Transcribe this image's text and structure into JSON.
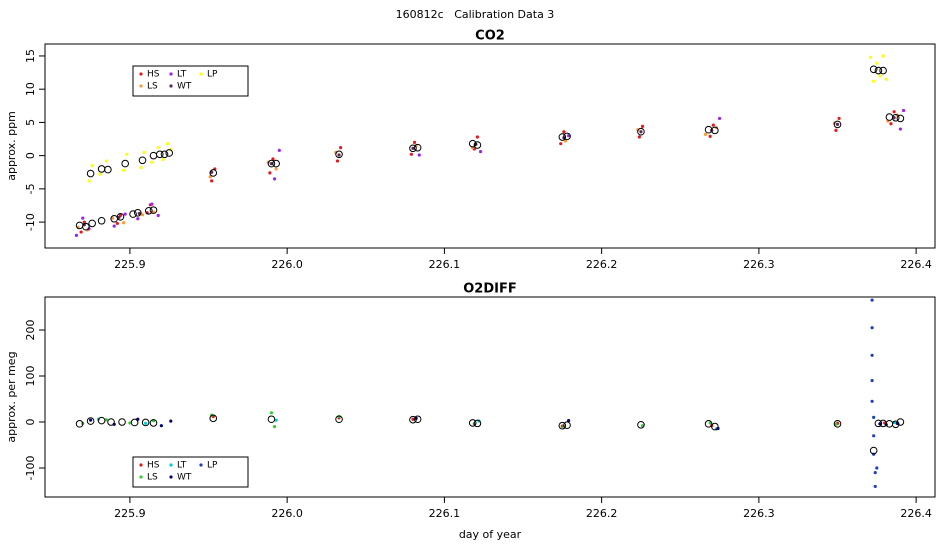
{
  "title": "160812c   Calibration Data 3",
  "chart_data": [
    {
      "type": "scatter",
      "title": "CO2",
      "ylabel": "approx. ppm",
      "xlim": [
        225.846,
        226.412
      ],
      "ylim": [
        -13.9,
        16.8
      ],
      "xticks": [
        225.9,
        {
          "value": 226,
          "label": "226.0"
        },
        226.1,
        226.2,
        226.3,
        226.4
      ],
      "yticks": [
        -10,
        -5,
        0,
        5,
        10,
        15
      ],
      "legend": "top-left",
      "series": [
        {
          "name": "HS",
          "color": "#e41a1c",
          "x": [
            225.869,
            225.871,
            225.892,
            225.894,
            225.911,
            225.913,
            225.952,
            225.954,
            225.989,
            225.991,
            226.032,
            226.034,
            226.079,
            226.081,
            226.119,
            226.121,
            226.174,
            226.176,
            226.224,
            226.226,
            226.269,
            226.271,
            226.349,
            226.351,
            226.384,
            226.386
          ],
          "values": [
            -11.5,
            -10.0,
            -10.2,
            -9.0,
            -8.6,
            -7.4,
            -3.8,
            -2.0,
            -2.6,
            -0.5,
            -0.8,
            1.2,
            0.2,
            2.0,
            1.0,
            2.8,
            1.8,
            3.6,
            2.8,
            4.4,
            2.9,
            4.6,
            3.8,
            5.6,
            4.8,
            6.6
          ]
        },
        {
          "name": "LS",
          "color": "#ff9933",
          "x": [
            225.867,
            225.873,
            225.889,
            225.896,
            225.908,
            225.915,
            225.951,
            225.988,
            225.993,
            226.031,
            226.082,
            226.118,
            226.177,
            226.223,
            226.266,
            226.273,
            226.348,
            226.382,
            226.388
          ],
          "values": [
            -10.8,
            -11.2,
            -9.4,
            -10.1,
            -8.9,
            -8.5,
            -3.2,
            -1.0,
            -2.0,
            0.5,
            1.5,
            1.2,
            2.2,
            3.9,
            3.2,
            4.2,
            4.9,
            5.2,
            6.1
          ]
        },
        {
          "name": "LT",
          "color": "#a020f0",
          "x": [
            225.866,
            225.87,
            225.874,
            225.89,
            225.897,
            225.905,
            225.914,
            225.918,
            225.992,
            225.995,
            226.084,
            226.123,
            226.179,
            226.275,
            226.39,
            226.392
          ],
          "values": [
            -12.0,
            -9.4,
            -11.0,
            -10.6,
            -8.8,
            -9.5,
            -7.3,
            -9.0,
            -3.5,
            0.8,
            0.1,
            0.6,
            3.0,
            5.6,
            4.0,
            6.8
          ]
        },
        {
          "name": "WT",
          "color": "#5a2a5a",
          "x": [
            225.871,
            225.893,
            225.906,
            225.952,
            225.99,
            226.033,
            226.08,
            226.12,
            226.176,
            226.225,
            226.27,
            226.35,
            226.386
          ],
          "values": [
            -10.4,
            -9.3,
            -8.7,
            -2.5,
            -1.2,
            0.1,
            1.1,
            1.7,
            2.7,
            3.6,
            3.8,
            4.7,
            5.7
          ]
        },
        {
          "name": "LP",
          "color": "#ffff00",
          "x": [
            225.874,
            225.876,
            225.881,
            225.885,
            225.896,
            225.898,
            225.907,
            225.909,
            225.914,
            225.918,
            225.921,
            225.924,
            225.926,
            226.371,
            226.373,
            226.375,
            226.377,
            226.379,
            226.381
          ],
          "values": [
            -3.8,
            -1.5,
            -2.8,
            -0.8,
            -2.2,
            0.2,
            -1.8,
            0.5,
            -1.0,
            1.2,
            -0.6,
            1.8,
            0.9,
            14.8,
            11.2,
            13.9,
            12.0,
            15.0,
            11.5
          ]
        }
      ],
      "means": {
        "x": [
          225.868,
          225.872,
          225.876,
          225.882,
          225.89,
          225.894,
          225.902,
          225.905,
          225.912,
          225.915,
          225.875,
          225.882,
          225.886,
          225.897,
          225.908,
          225.915,
          225.919,
          225.922,
          225.925,
          225.953,
          225.99,
          225.993,
          226.033,
          226.08,
          226.083,
          226.118,
          226.121,
          226.175,
          226.178,
          226.225,
          226.268,
          226.272,
          226.35,
          226.373,
          226.376,
          226.379,
          226.383,
          226.387,
          226.39
        ],
        "y": [
          -10.5,
          -10.7,
          -10.2,
          -9.8,
          -9.5,
          -9.2,
          -8.8,
          -8.6,
          -8.3,
          -8.2,
          -2.7,
          -2,
          -2.1,
          -1.2,
          -0.7,
          0,
          0.2,
          0.2,
          0.4,
          -2.6,
          -1.2,
          -1.2,
          0.2,
          1.1,
          1.2,
          1.8,
          1.6,
          2.8,
          2.9,
          3.6,
          3.9,
          3.8,
          4.7,
          13,
          12.8,
          12.8,
          5.8,
          5.7,
          5.6
        ]
      }
    },
    {
      "type": "scatter",
      "title": "O2DIFF",
      "ylabel": "approx. per meg",
      "xlabel": "day of year",
      "xlim": [
        225.846,
        226.412
      ],
      "ylim": [
        -163,
        271.7
      ],
      "xticks": [
        225.9,
        {
          "value": 226,
          "label": "226.0"
        },
        226.1,
        226.2,
        226.3,
        226.4
      ],
      "yticks": [
        -100,
        0,
        100,
        200
      ],
      "legend": "bottom-left",
      "series": [
        {
          "name": "HS",
          "color": "#e41a1c",
          "x": [
            225.953,
            226.033,
            226.08,
            226.175,
            226.27,
            226.35,
            226.38
          ],
          "values": [
            12,
            9,
            6,
            -9,
            -8,
            -3,
            -2
          ]
        },
        {
          "name": "LS",
          "color": "#33cc33",
          "x": [
            225.87,
            225.885,
            225.9,
            225.915,
            225.952,
            225.99,
            225.992,
            226.033,
            226.119,
            226.176,
            226.226,
            226.269,
            226.349
          ],
          "values": [
            -3,
            5,
            -2,
            3,
            15,
            20,
            -10,
            12,
            -4,
            -10,
            -8,
            -2,
            -5
          ]
        },
        {
          "name": "LT",
          "color": "#00cccc",
          "x": [
            225.88,
            225.91,
            225.993,
            226.122,
            226.273,
            226.386
          ],
          "values": [
            6,
            -3,
            4,
            2,
            -15,
            -1
          ]
        },
        {
          "name": "WT",
          "color": "#000080",
          "x": [
            225.875,
            225.89,
            225.905,
            225.92,
            225.926,
            226.082,
            226.179,
            226.274,
            226.377,
            226.381,
            226.388
          ],
          "values": [
            4,
            -5,
            6,
            -8,
            2,
            8,
            3,
            -14,
            -4,
            -6,
            -3
          ]
        },
        {
          "name": "LP",
          "color": "#1f3fbf",
          "x": [
            226.372,
            226.372,
            226.372,
            226.372,
            226.372,
            226.373,
            226.373,
            226.373,
            226.374,
            226.374,
            226.375
          ],
          "values": [
            265,
            205,
            145,
            90,
            45,
            10,
            -30,
            -70,
            -110,
            -140,
            -100
          ]
        }
      ],
      "means": {
        "x": [
          225.868,
          225.875,
          225.882,
          225.888,
          225.895,
          225.903,
          225.91,
          225.915,
          225.953,
          225.99,
          226.033,
          226.08,
          226.083,
          226.118,
          226.121,
          226.175,
          226.178,
          226.225,
          226.268,
          226.272,
          226.35,
          226.373,
          226.376,
          226.379,
          226.383,
          226.387,
          226.39
        ],
        "y": [
          -4,
          2,
          3,
          0,
          0,
          -1,
          -1,
          -2,
          8,
          6,
          6,
          5,
          6,
          -2,
          -3,
          -8,
          -7,
          -6,
          -4,
          -10,
          -4,
          -62,
          -3,
          -3,
          -4,
          -5,
          0
        ]
      }
    }
  ]
}
